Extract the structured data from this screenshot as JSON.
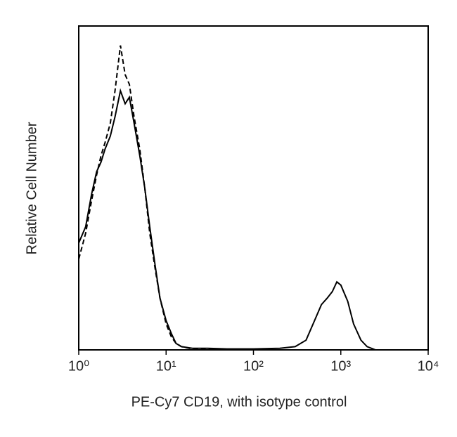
{
  "chart_data": {
    "type": "line",
    "x_label": "PE-Cy7 CD19, with isotype control",
    "y_label": "Relative Cell Number",
    "x_scale": "log",
    "x": [
      1,
      1.2,
      1.4,
      1.6,
      1.8,
      2,
      2.3,
      2.6,
      3,
      3.4,
      3.8,
      4.3,
      5,
      5.7,
      6.5,
      7.5,
      8.5,
      10,
      11.5,
      13,
      15,
      20,
      30,
      50,
      100,
      200,
      300,
      400,
      500,
      600,
      700,
      800,
      900,
      1000,
      1200,
      1400,
      1700,
      2000,
      2500,
      5000,
      10000
    ],
    "series": [
      {
        "name": "CD19",
        "color": "#000000",
        "line_style": "solid",
        "values": [
          33,
          38,
          48,
          55,
          58,
          62,
          66,
          72,
          80,
          76,
          78,
          70,
          60,
          50,
          38,
          26,
          16,
          9,
          5,
          2,
          1,
          0.5,
          0.5,
          0.3,
          0.3,
          0.5,
          1,
          3,
          9,
          14,
          16,
          18,
          21,
          20,
          15,
          8,
          3,
          1,
          0,
          0,
          0
        ]
      },
      {
        "name": "Isotype control",
        "color": "#000000",
        "line_style": "dashed",
        "values": [
          28,
          36,
          46,
          54,
          60,
          64,
          70,
          80,
          94,
          85,
          82,
          72,
          62,
          50,
          36,
          25,
          16,
          8,
          4,
          2,
          1,
          0.3,
          0.2,
          0,
          0,
          0,
          0,
          0,
          0,
          0,
          0,
          0,
          0,
          0,
          0,
          0,
          0,
          0,
          0,
          0,
          0
        ]
      }
    ],
    "xlim": [
      1,
      10000
    ],
    "xticks": [
      {
        "value": 1,
        "label": "10⁰"
      },
      {
        "value": 10,
        "label": "10¹"
      },
      {
        "value": 100,
        "label": "10²"
      },
      {
        "value": 1000,
        "label": "10³"
      },
      {
        "value": 10000,
        "label": "10⁴"
      }
    ],
    "ylim": [
      0,
      100
    ]
  }
}
